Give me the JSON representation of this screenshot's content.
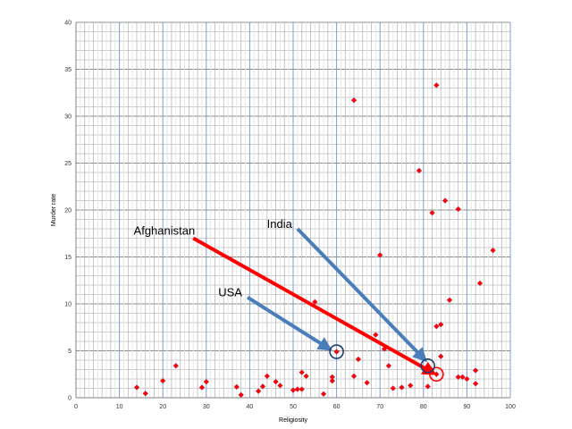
{
  "chart_data": {
    "type": "scatter",
    "title": "",
    "xlabel": "Religiosity",
    "ylabel": "Murder rate",
    "xlim": [
      0,
      100
    ],
    "ylim": [
      0,
      40
    ],
    "xticks": [
      0,
      10,
      20,
      30,
      40,
      50,
      60,
      70,
      80,
      90,
      100
    ],
    "yticks": [
      0,
      5,
      10,
      15,
      20,
      25,
      30,
      35,
      40
    ],
    "grid": true,
    "legend": "none",
    "marker_color": "#ff0000",
    "points": [
      [
        14,
        1.1
      ],
      [
        16,
        0.45
      ],
      [
        20,
        1.8
      ],
      [
        23,
        3.4
      ],
      [
        29,
        1.1
      ],
      [
        30,
        1.7
      ],
      [
        37,
        1.15
      ],
      [
        38,
        0.3
      ],
      [
        42,
        0.7
      ],
      [
        43,
        1.2
      ],
      [
        44,
        2.3
      ],
      [
        46,
        1.7
      ],
      [
        47,
        1.3
      ],
      [
        50,
        0.8
      ],
      [
        51,
        0.9
      ],
      [
        52,
        0.9
      ],
      [
        52,
        2.7
      ],
      [
        53,
        2.3
      ],
      [
        55,
        10.2
      ],
      [
        57,
        0.4
      ],
      [
        59,
        2.2
      ],
      [
        59,
        1.8
      ],
      [
        60,
        4.9
      ],
      [
        64,
        2.3
      ],
      [
        64,
        31.7
      ],
      [
        65,
        4.1
      ],
      [
        67,
        1.6
      ],
      [
        69,
        6.7
      ],
      [
        70,
        15.2
      ],
      [
        71,
        5.2
      ],
      [
        72,
        3.4
      ],
      [
        73,
        1.0
      ],
      [
        75,
        1.1
      ],
      [
        77,
        1.3
      ],
      [
        79,
        24.2
      ],
      [
        81,
        3.4
      ],
      [
        81,
        1.2
      ],
      [
        82,
        19.7
      ],
      [
        83,
        2.5
      ],
      [
        83,
        7.6
      ],
      [
        83,
        33.3
      ],
      [
        84,
        7.8
      ],
      [
        84,
        4.4
      ],
      [
        85,
        21.0
      ],
      [
        86,
        10.4
      ],
      [
        88,
        20.1
      ],
      [
        88,
        2.2
      ],
      [
        89,
        2.2
      ],
      [
        90,
        2.0
      ],
      [
        92,
        2.9
      ],
      [
        92,
        1.5
      ],
      [
        93,
        12.2
      ],
      [
        96,
        15.7
      ]
    ],
    "annotations": [
      {
        "text": "Afghanistan",
        "color": "#ff0000",
        "from": [
          27,
          17
        ],
        "to": [
          82,
          2.7
        ],
        "target": [
          83,
          2.5
        ]
      },
      {
        "text": "India",
        "color": "#4a7ebb",
        "from": [
          51,
          18
        ],
        "to": [
          80,
          4.2
        ],
        "target": [
          81,
          3.4
        ]
      },
      {
        "text": "USA",
        "color": "#4a7ebb",
        "from": [
          39.5,
          10.7
        ],
        "to": [
          58,
          5.3
        ],
        "target": [
          60,
          4.9
        ]
      }
    ]
  }
}
